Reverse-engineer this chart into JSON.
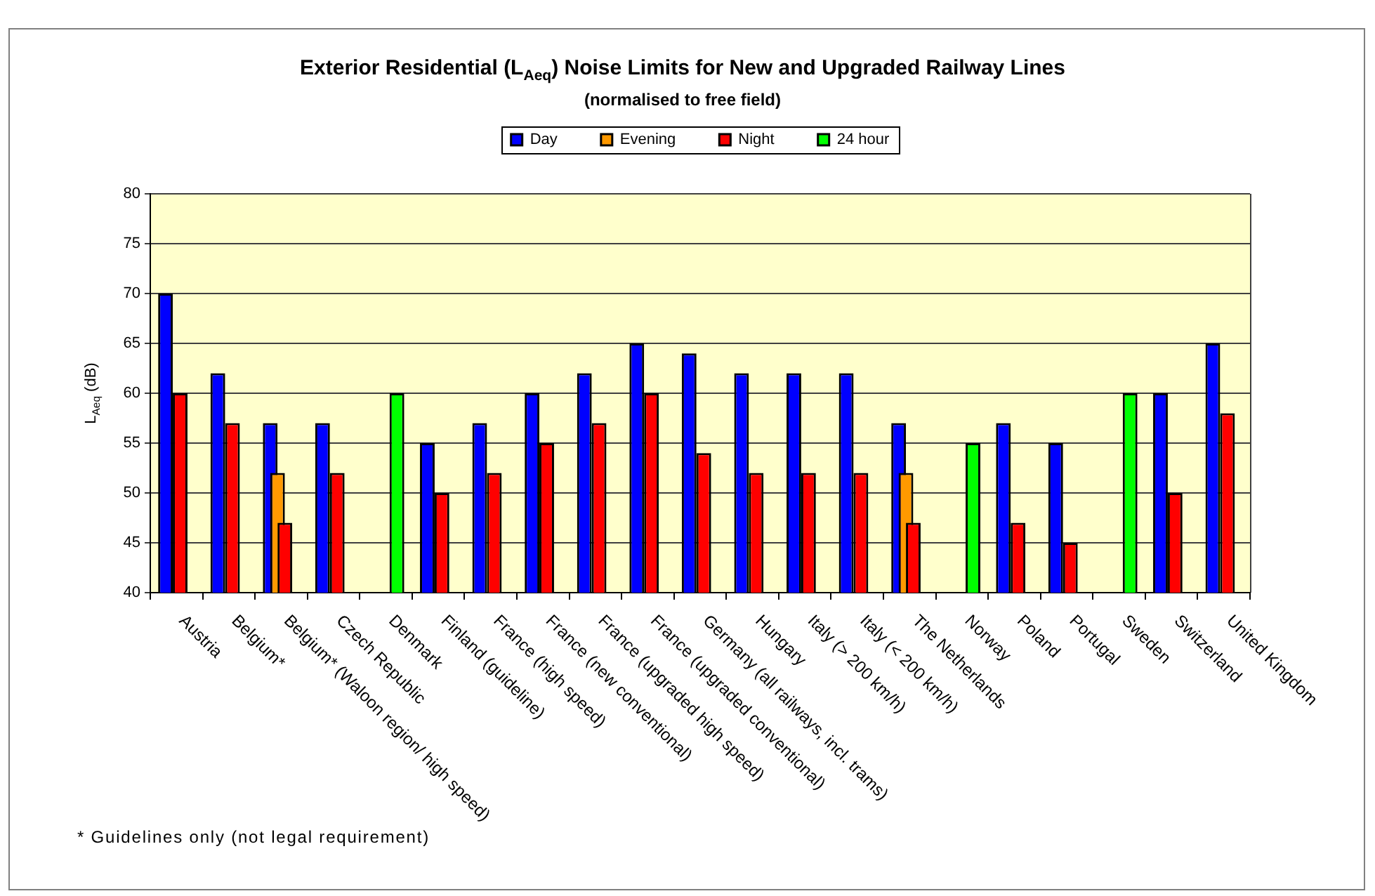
{
  "chart_data": {
    "type": "bar",
    "title": "Exterior Residential (L$_{Aeq}$) Noise Limits for New and Upgraded Railway Lines",
    "subtitle": "(normalised to free field)",
    "ylabel": "L$_{Aeq}$ (dB)",
    "annotations": [
      "* Guidelines only (not legal requirement)"
    ],
    "categories": [
      "Austria",
      "Belgium*",
      "Belgium* (Waloon region/ high speed)",
      "Czech Republic",
      "Denmark",
      "Finland (guideline)",
      "France (high speed)",
      "France (new conventional)",
      "France (upgraded high speed)",
      "France (upgraded conventional)",
      "Germany (all railways, incl. trams)",
      "Hungary",
      "Italy (> 200 km/h)",
      "Italy (< 200 km/h)",
      "The Netherlands",
      "Norway",
      "Poland",
      "Portugal",
      "Sweden",
      "Switzerland",
      "United Kingdom"
    ],
    "series": [
      {
        "name": "Day",
        "color": "#0000ff",
        "values": [
          70,
          62,
          57,
          57,
          null,
          55,
          57,
          60,
          62,
          65,
          64,
          62,
          62,
          62,
          57,
          null,
          57,
          55,
          null,
          60,
          65
        ]
      },
      {
        "name": "Evening",
        "color": "#ff9900",
        "values": [
          null,
          null,
          52,
          null,
          null,
          null,
          null,
          null,
          null,
          null,
          null,
          null,
          null,
          null,
          52,
          null,
          null,
          null,
          null,
          null,
          null
        ]
      },
      {
        "name": "Night",
        "color": "#ff0000",
        "values": [
          60,
          57,
          47,
          52,
          null,
          50,
          52,
          55,
          57,
          60,
          54,
          52,
          52,
          52,
          47,
          null,
          47,
          45,
          null,
          50,
          58
        ]
      },
      {
        "name": "24 hour",
        "color": "#00ff00",
        "values": [
          null,
          null,
          null,
          null,
          60,
          null,
          null,
          null,
          null,
          null,
          null,
          null,
          null,
          null,
          null,
          55,
          null,
          null,
          60,
          null,
          null
        ]
      }
    ],
    "ylim": [
      40,
      80
    ],
    "yticks": [
      40,
      45,
      50,
      55,
      60,
      65,
      70,
      75,
      80
    ],
    "grid": "y",
    "legend": "top"
  }
}
